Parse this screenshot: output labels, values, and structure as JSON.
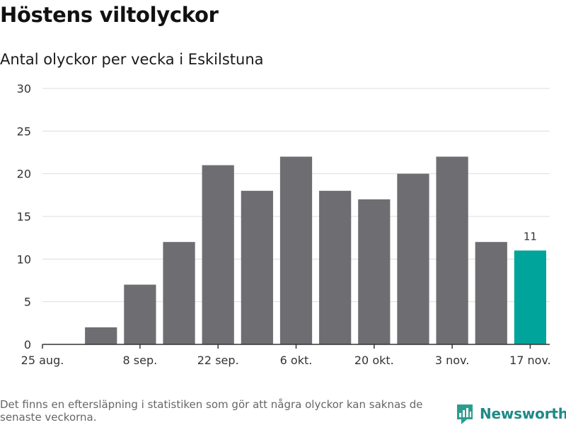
{
  "header": {
    "title": "Höstens viltolyckor",
    "subtitle": "Antal olyckor per vecka i Eskilstuna"
  },
  "chart_data": {
    "type": "bar",
    "title": "Höstens viltolyckor",
    "subtitle": "Antal olyckor per vecka i Eskilstuna",
    "categories": [
      "25 aug.",
      "",
      "8 sep.",
      "",
      "22 sep.",
      "",
      "6 okt.",
      "",
      "20 okt.",
      "",
      "3 nov.",
      "",
      "17 nov."
    ],
    "values": [
      0,
      2,
      7,
      12,
      21,
      18,
      22,
      18,
      17,
      20,
      22,
      12,
      11
    ],
    "x_tick_labels": [
      "25 aug.",
      "8 sep.",
      "22 sep.",
      "6 okt.",
      "20 okt.",
      "3 nov.",
      "17 nov."
    ],
    "y_ticks": [
      0,
      5,
      10,
      15,
      20,
      25,
      30
    ],
    "ylim": [
      0,
      30
    ],
    "xlabel": "",
    "ylabel": "",
    "grid": true,
    "highlight_index": 12,
    "highlight_label": "11",
    "colors": {
      "bar": "#6e6d72",
      "highlight": "#00a49a",
      "grid": "#dddddd",
      "axis": "#333333"
    }
  },
  "footer": {
    "note": "Det finns en eftersläpning i statistiken som gör att några olyckor kan saknas de senaste veckorna.",
    "brand": "Newsworthy",
    "brand_icon": "newsworthy-logo-icon",
    "brand_color": "#1f8a87"
  }
}
